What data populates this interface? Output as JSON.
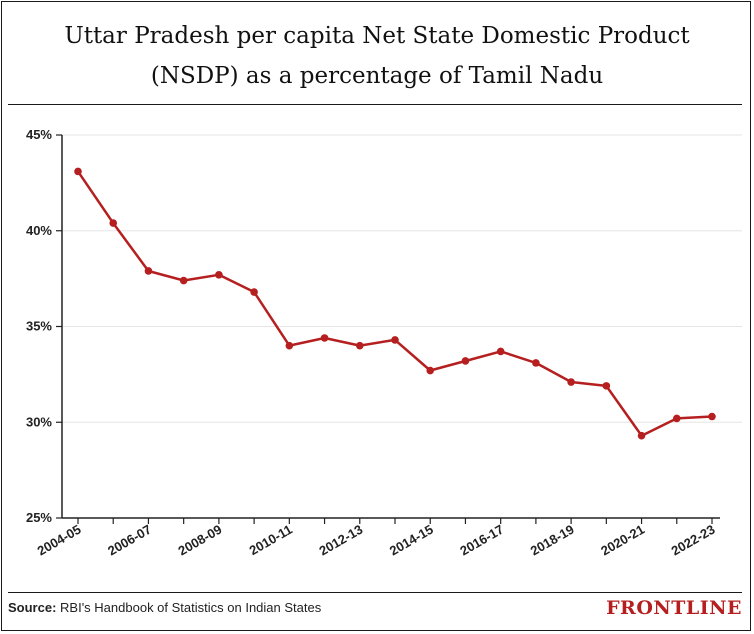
{
  "chart_data": {
    "type": "line",
    "title": "Uttar Pradesh per capita Net State Domestic Product (NSDP) as a percentage of Tamil Nadu",
    "title_lines": [
      "Uttar Pradesh per capita Net State Domestic Product",
      "(NSDP) as a percentage of Tamil Nadu"
    ],
    "xlabel": "",
    "ylabel": "",
    "ylim": [
      25,
      45
    ],
    "yticks": [
      25,
      30,
      35,
      40,
      45
    ],
    "ytick_labels": [
      "25%",
      "30%",
      "35%",
      "40%",
      "45%"
    ],
    "grid": true,
    "x": [
      "2004-05",
      "2005-06",
      "2006-07",
      "2007-08",
      "2008-09",
      "2009-10",
      "2010-11",
      "2011-12",
      "2012-13",
      "2013-14",
      "2014-15",
      "2015-16",
      "2016-17",
      "2017-18",
      "2018-19",
      "2019-20",
      "2020-21",
      "2021-22",
      "2022-23"
    ],
    "xtick_labels": [
      "2004-05",
      "2006-07",
      "2008-09",
      "2010-11",
      "2012-13",
      "2014-15",
      "2016-17",
      "2018-19",
      "2020-21",
      "2022-23"
    ],
    "series": [
      {
        "values": [
          43.1,
          40.4,
          37.9,
          37.4,
          37.7,
          36.8,
          34.0,
          34.4,
          34.0,
          34.3,
          32.7,
          33.2,
          33.7,
          33.1,
          32.1,
          31.9,
          29.3,
          30.2,
          30.3
        ]
      }
    ],
    "line_color": "#b51f1f"
  },
  "footer": {
    "source_label": "Source:",
    "source_text": "RBI's Handbook of Statistics on Indian States"
  },
  "brand": "FRONTLINE"
}
